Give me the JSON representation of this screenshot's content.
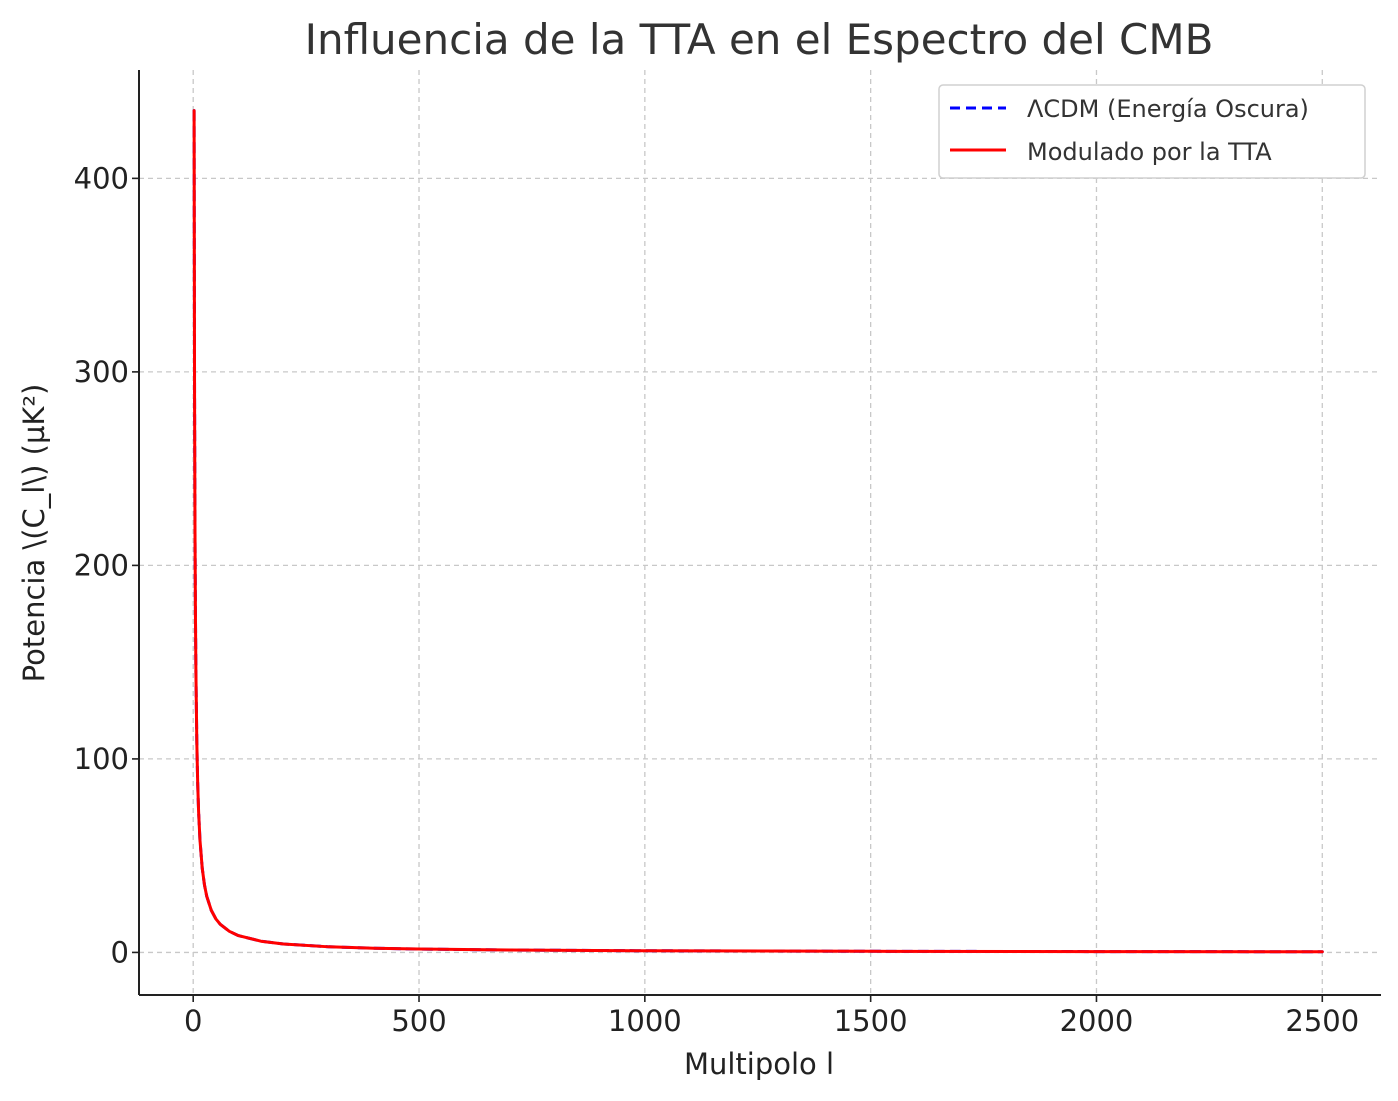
{
  "chart_data": {
    "type": "line",
    "title": "Influencia de la TTA en el Espectro del CMB",
    "xlabel": "Multipolo l",
    "ylabel": "Potencia \\(C_l\\) (µK²)",
    "xlim": [
      -120,
      2630
    ],
    "ylim": [
      -22,
      456
    ],
    "xticks": [
      0,
      500,
      1000,
      1500,
      2000,
      2500
    ],
    "xtick_labels": [
      "0",
      "500",
      "1000",
      "1500",
      "2000",
      "2500"
    ],
    "yticks": [
      0,
      100,
      200,
      300,
      400
    ],
    "ytick_labels": [
      "0",
      "100",
      "200",
      "300",
      "400"
    ],
    "grid": true,
    "legend_position": "top-right",
    "series": [
      {
        "name": "ΛCDM (Energía Oscura)",
        "color": "#0000ff",
        "style": "dashed",
        "x": [
          2,
          3,
          4,
          5,
          6,
          8,
          10,
          12,
          15,
          20,
          25,
          30,
          40,
          50,
          60,
          80,
          100,
          150,
          200,
          300,
          400,
          500,
          700,
          1000,
          1500,
          2000,
          2500
        ],
        "y": [
          435,
          290,
          217.5,
          174,
          145,
          108.8,
          87,
          72.5,
          58,
          43.5,
          34.8,
          29,
          21.8,
          17.4,
          14.5,
          10.9,
          8.7,
          5.8,
          4.35,
          2.9,
          2.18,
          1.74,
          1.24,
          0.87,
          0.58,
          0.44,
          0.35
        ]
      },
      {
        "name": "Modulado por la TTA",
        "color": "#ff0000",
        "style": "solid",
        "x": [
          2,
          3,
          4,
          5,
          6,
          8,
          10,
          12,
          15,
          20,
          25,
          30,
          40,
          50,
          60,
          80,
          100,
          150,
          200,
          300,
          400,
          500,
          700,
          1000,
          1500,
          2000,
          2500
        ],
        "y": [
          435,
          290,
          217.5,
          174,
          145,
          108.8,
          87,
          72.5,
          58,
          43.5,
          34.8,
          29,
          21.8,
          17.4,
          14.5,
          10.9,
          8.7,
          5.8,
          4.35,
          2.9,
          2.18,
          1.74,
          1.24,
          0.87,
          0.58,
          0.44,
          0.35
        ]
      }
    ]
  }
}
